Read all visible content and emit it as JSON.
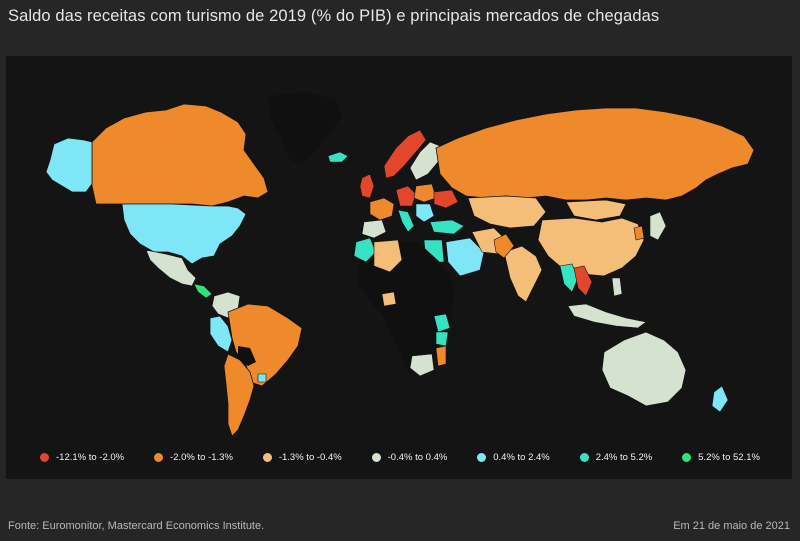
{
  "title": "Saldo das receitas com turismo de 2019 (% do PIB) e principais mercados de chegadas",
  "colors": {
    "c1": "#e2462b",
    "c2": "#ee8a2c",
    "c3": "#f4bd78",
    "c4": "#d4e2cf",
    "c5": "#7fe6f8",
    "c6": "#37e2c2",
    "c7": "#2fe27a",
    "land_unmapped": "#101010",
    "background": "#141414"
  },
  "legend": [
    {
      "label": "-12.1% to -2.0%",
      "color": "#e2462b"
    },
    {
      "label": "-2.0% to -1.3%",
      "color": "#ee8a2c"
    },
    {
      "label": "-1.3% to -0.4%",
      "color": "#f4bd78"
    },
    {
      "label": "-0.4% to 0.4%",
      "color": "#d4e2cf"
    },
    {
      "label": "0.4% to 2.4%",
      "color": "#7fe6f8"
    },
    {
      "label": "2.4% to 5.2%",
      "color": "#37e2c2"
    },
    {
      "label": "5.2% to 52.1%",
      "color": "#2fe27a"
    }
  ],
  "source": "Fonte: Euromonitor, Mastercard Economics Institute.",
  "date": "Em 21 de maio de 2021"
}
